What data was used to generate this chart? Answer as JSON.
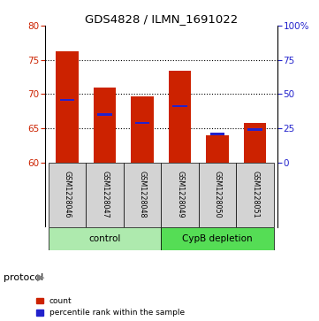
{
  "title": "GDS4828 / ILMN_1691022",
  "samples": [
    "GSM1228046",
    "GSM1228047",
    "GSM1228048",
    "GSM1228049",
    "GSM1228050",
    "GSM1228051"
  ],
  "bar_bottoms": [
    60,
    60,
    60,
    60,
    60,
    60
  ],
  "bar_tops": [
    76.2,
    71.0,
    69.7,
    73.4,
    64.0,
    65.8
  ],
  "blue_values": [
    69.1,
    67.0,
    65.8,
    68.2,
    64.15,
    64.8
  ],
  "ylim": [
    60,
    80
  ],
  "yticks_left": [
    60,
    65,
    70,
    75,
    80
  ],
  "yticks_right": [
    0,
    25,
    50,
    75,
    100
  ],
  "ytick_right_labels": [
    "0",
    "25",
    "50",
    "75",
    "100%"
  ],
  "bar_color": "#CC2200",
  "blue_color": "#2222CC",
  "bar_width": 0.6,
  "control_color": "#AEEAAE",
  "cypb_color": "#55DD55",
  "protocol_label": "protocol",
  "sample_box_color": "#D3D3D3",
  "legend_count_label": "count",
  "legend_percentile_label": "percentile rank within the sample",
  "grid_color": "#000000"
}
